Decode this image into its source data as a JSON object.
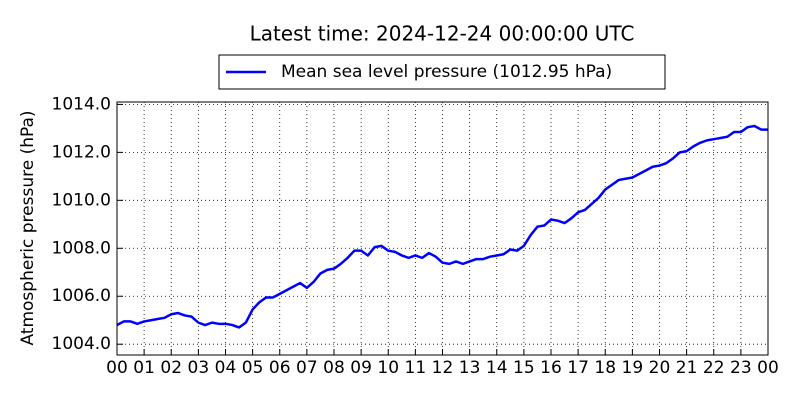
{
  "chart_data": {
    "type": "line",
    "title": "Latest time: 2024-12-24 00:00:00 UTC",
    "ylabel": "Atmospheric pressure (hPa)",
    "legend": "upper center",
    "grid": true,
    "xlim": [
      0,
      24
    ],
    "xticks": [
      {
        "value": 0,
        "label": "00"
      },
      {
        "value": 1,
        "label": "01"
      },
      {
        "value": 2,
        "label": "02"
      },
      {
        "value": 3,
        "label": "03"
      },
      {
        "value": 4,
        "label": "04"
      },
      {
        "value": 5,
        "label": "05"
      },
      {
        "value": 6,
        "label": "06"
      },
      {
        "value": 7,
        "label": "07"
      },
      {
        "value": 8,
        "label": "08"
      },
      {
        "value": 9,
        "label": "09"
      },
      {
        "value": 10,
        "label": "10"
      },
      {
        "value": 11,
        "label": "11"
      },
      {
        "value": 12,
        "label": "12"
      },
      {
        "value": 13,
        "label": "13"
      },
      {
        "value": 14,
        "label": "14"
      },
      {
        "value": 15,
        "label": "15"
      },
      {
        "value": 16,
        "label": "16"
      },
      {
        "value": 17,
        "label": "17"
      },
      {
        "value": 18,
        "label": "18"
      },
      {
        "value": 19,
        "label": "19"
      },
      {
        "value": 20,
        "label": "20"
      },
      {
        "value": 21,
        "label": "21"
      },
      {
        "value": 22,
        "label": "22"
      },
      {
        "value": 23,
        "label": "23"
      },
      {
        "value": 24,
        "label": "00"
      }
    ],
    "ylim": [
      1003.55,
      1014.1
    ],
    "yticks": [
      {
        "value": 1004,
        "label": "1004.0"
      },
      {
        "value": 1006,
        "label": "1006.0"
      },
      {
        "value": 1008,
        "label": "1008.0"
      },
      {
        "value": 1010,
        "label": "1010.0"
      },
      {
        "value": 1012,
        "label": "1012.0"
      },
      {
        "value": 1014,
        "label": "1014.0"
      }
    ],
    "x": [
      0,
      0.25,
      0.5,
      0.75,
      1,
      1.25,
      1.5,
      1.75,
      2,
      2.25,
      2.5,
      2.75,
      3,
      3.25,
      3.5,
      3.75,
      4,
      4.25,
      4.5,
      4.75,
      5,
      5.25,
      5.5,
      5.75,
      6,
      6.25,
      6.5,
      6.75,
      7,
      7.25,
      7.5,
      7.75,
      8,
      8.25,
      8.5,
      8.75,
      9,
      9.25,
      9.5,
      9.75,
      10,
      10.25,
      10.5,
      10.75,
      11,
      11.25,
      11.5,
      11.75,
      12,
      12.25,
      12.5,
      12.75,
      13,
      13.25,
      13.5,
      13.75,
      14,
      14.25,
      14.5,
      14.75,
      15,
      15.25,
      15.5,
      15.75,
      16,
      16.25,
      16.5,
      16.75,
      17,
      17.25,
      17.5,
      17.75,
      18,
      18.25,
      18.5,
      18.75,
      19,
      19.25,
      19.5,
      19.75,
      20,
      20.25,
      20.5,
      20.75,
      21,
      21.25,
      21.5,
      21.75,
      22,
      22.25,
      22.5,
      22.75,
      23,
      23.25,
      23.5,
      23.75,
      24
    ],
    "series": [
      {
        "name": "Mean sea level pressure (1012.95 hPa)",
        "color": "#0000ff",
        "values": [
          1004.8,
          1004.95,
          1004.95,
          1004.85,
          1004.95,
          1005.0,
          1005.05,
          1005.1,
          1005.25,
          1005.3,
          1005.2,
          1005.15,
          1004.9,
          1004.8,
          1004.9,
          1004.85,
          1004.85,
          1004.8,
          1004.7,
          1004.9,
          1005.45,
          1005.75,
          1005.95,
          1005.95,
          1006.1,
          1006.25,
          1006.4,
          1006.55,
          1006.35,
          1006.6,
          1006.95,
          1007.1,
          1007.15,
          1007.35,
          1007.6,
          1007.9,
          1007.9,
          1007.7,
          1008.05,
          1008.1,
          1007.9,
          1007.85,
          1007.7,
          1007.6,
          1007.7,
          1007.6,
          1007.8,
          1007.65,
          1007.4,
          1007.35,
          1007.45,
          1007.35,
          1007.45,
          1007.55,
          1007.55,
          1007.65,
          1007.7,
          1007.75,
          1007.95,
          1007.9,
          1008.1,
          1008.55,
          1008.9,
          1008.95,
          1009.2,
          1009.15,
          1009.05,
          1009.25,
          1009.5,
          1009.6,
          1009.85,
          1010.1,
          1010.45,
          1010.65,
          1010.85,
          1010.9,
          1010.95,
          1011.1,
          1011.25,
          1011.4,
          1011.45,
          1011.55,
          1011.75,
          1012.0,
          1012.05,
          1012.25,
          1012.4,
          1012.5,
          1012.55,
          1012.6,
          1012.65,
          1012.85,
          1012.85,
          1013.05,
          1013.1,
          1012.95,
          1012.95
        ]
      }
    ]
  }
}
